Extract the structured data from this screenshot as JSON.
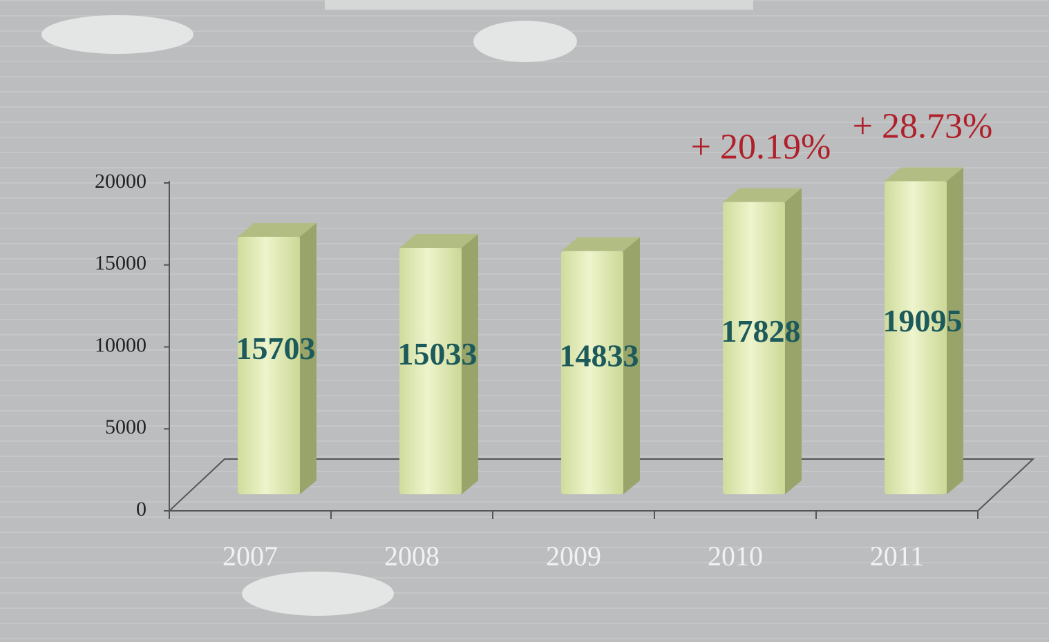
{
  "chart_data": {
    "type": "bar3d",
    "categories": [
      "2007",
      "2008",
      "2009",
      "2010",
      "2011"
    ],
    "values": [
      15703,
      15033,
      14833,
      17828,
      19095
    ],
    "color": "#dde8b0",
    "ylim": [
      0,
      20000
    ],
    "yticks": [
      0,
      5000,
      10000,
      15000,
      20000
    ],
    "annotations": [
      "+ 20.19%",
      "+ 28.73%"
    ]
  }
}
